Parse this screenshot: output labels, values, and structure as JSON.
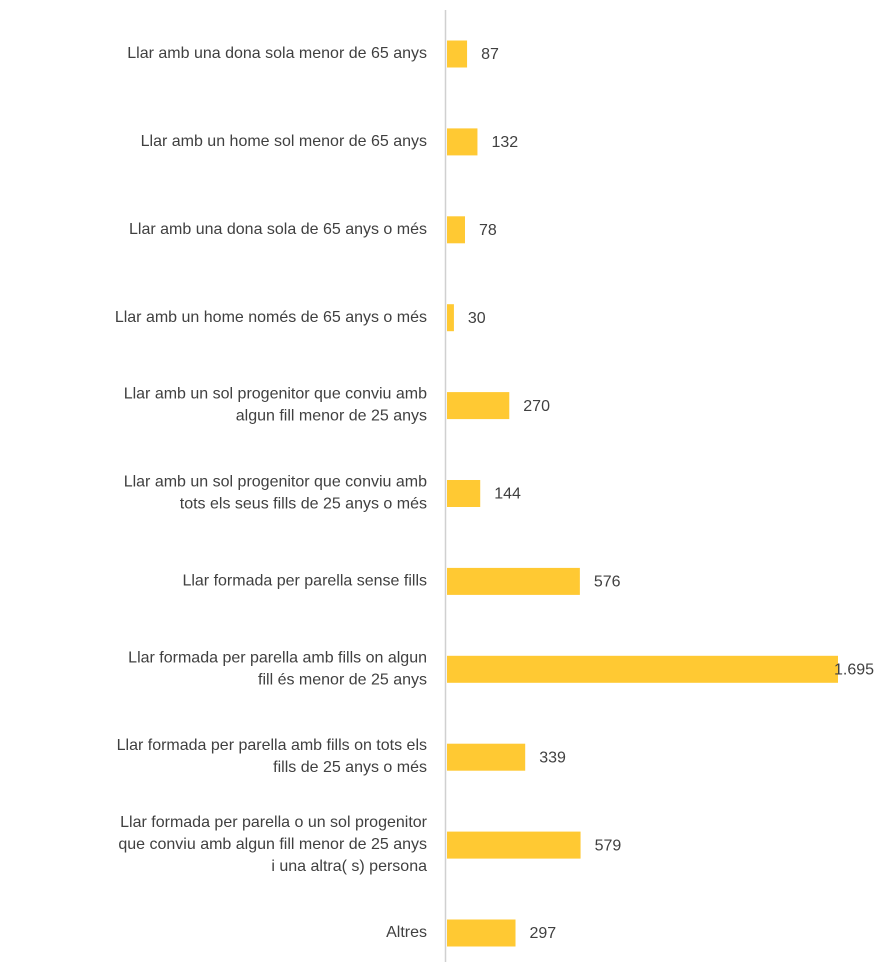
{
  "chart_data": {
    "type": "hbar",
    "categories": [
      "Llar amb una dona sola menor de 65 anys",
      "Llar amb un home sol menor de 65 anys",
      "Llar amb una dona sola de 65 anys o més",
      "Llar amb un home només de 65 anys o més",
      "Llar amb un sol progenitor que conviu amb\nalgun fill menor de 25 anys",
      "Llar amb un sol progenitor que conviu amb\ntots els seus fills de 25 anys o més",
      "Llar formada per parella sense fills",
      "Llar formada per parella amb fills on algun\nfill és menor de 25 anys",
      "Llar formada per parella amb fills on tots els\nfills de 25 anys o més",
      "Llar formada per parella o un sol progenitor\nque conviu amb algun fill menor de 25 anys\ni una altra( s) persona",
      "Altres"
    ],
    "values": [
      87,
      132,
      78,
      30,
      270,
      144,
      576,
      1695,
      339,
      579,
      297
    ],
    "value_labels": [
      "87",
      "132",
      "78",
      "30",
      "270",
      "144",
      "576",
      "1.695",
      "339",
      "579",
      "297"
    ],
    "color": "#ffc933",
    "xlim": [
      0,
      1695
    ]
  }
}
